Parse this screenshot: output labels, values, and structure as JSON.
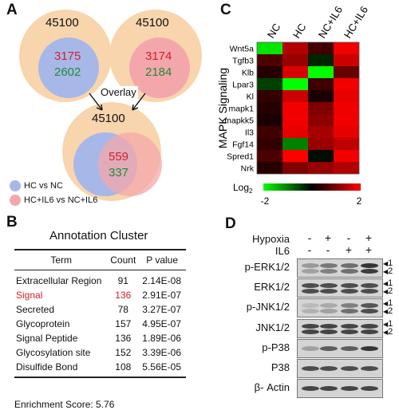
{
  "panels": {
    "a": "A",
    "b": "B",
    "c": "C",
    "d": "D"
  },
  "venn": {
    "left": {
      "total": "45100",
      "overlap_red": "3175",
      "overlap_green": "2602"
    },
    "right": {
      "total": "45100",
      "overlap_red": "3174",
      "overlap_green": "2184"
    },
    "overlay_label": "Overlay",
    "combined": {
      "total": "45100",
      "overlap_red": "559",
      "overlap_green": "337"
    },
    "legend": [
      {
        "label": "HC vs NC",
        "color": "#a7b8e8"
      },
      {
        "label": "HC+IL6 vs NC+IL6",
        "color": "#f4a7ab"
      }
    ]
  },
  "annotation": {
    "title": "Annotation Cluster",
    "headers": [
      "Term",
      "Count",
      "P value"
    ],
    "rows": [
      {
        "term": "Extracellular Region",
        "count": "91",
        "p": "2.14E-08"
      },
      {
        "term": "Signal",
        "count": "136",
        "p": "2.91E-07"
      },
      {
        "term": "Secreted",
        "count": "78",
        "p": "3.27E-07"
      },
      {
        "term": "Glycoprotein",
        "count": "157",
        "p": "4.95E-07"
      },
      {
        "term": "Signal Peptide",
        "count": "136",
        "p": "1.89E-06"
      },
      {
        "term": "Glycosylation site",
        "count": "152",
        "p": "3.39E-06"
      },
      {
        "term": "Disulfide Bond",
        "count": "108",
        "p": "5.56E-05"
      }
    ],
    "enrichment": "Enrichment Score: 5.76"
  },
  "heatmap": {
    "columns": [
      "NC",
      "HC",
      "NC+IL6",
      "HC+IL6"
    ],
    "rows": [
      "Wnt5a",
      "Tgfb3",
      "Klb",
      "Lpar3",
      "Kl",
      "mapk1",
      "mapkk5",
      "Il3",
      "Fgf14",
      "Spred1",
      "Nrk"
    ],
    "ylabel": "MAPK Signaling",
    "colorbar": {
      "label": "Log",
      "label_sub": "2",
      "min": "-2",
      "max": "2"
    },
    "values": [
      [
        -1.8,
        1.4,
        0.5,
        1.9
      ],
      [
        0.6,
        1.2,
        -0.3,
        1.6
      ],
      [
        0.3,
        1.7,
        -2.0,
        0.8
      ],
      [
        -0.5,
        -2.0,
        0.5,
        1.9
      ],
      [
        0.4,
        1.6,
        0.2,
        1.8
      ],
      [
        0.3,
        1.9,
        1.0,
        1.9
      ],
      [
        0.2,
        1.9,
        1.1,
        1.9
      ],
      [
        0.5,
        1.8,
        1.3,
        1.8
      ],
      [
        0.4,
        -1.0,
        1.2,
        1.5
      ],
      [
        0.6,
        2.0,
        -0.1,
        1.9
      ],
      [
        0.3,
        1.0,
        1.2,
        1.4
      ]
    ]
  },
  "western": {
    "conditions": [
      {
        "label": "Hypoxia",
        "signs": [
          "-",
          "+",
          "-",
          "+"
        ]
      },
      {
        "label": "IL6",
        "signs": [
          "-",
          "-",
          "+",
          "+"
        ]
      }
    ],
    "blots": [
      {
        "label": "p-ERK1/2",
        "markers": [
          "1",
          "2"
        ]
      },
      {
        "label": "ERK1/2",
        "markers": [
          "1",
          "2"
        ]
      },
      {
        "label": "p-JNK1/2",
        "markers": [
          "1",
          "2"
        ]
      },
      {
        "label": "JNK1/2",
        "markers": [
          "1",
          "2"
        ]
      },
      {
        "label": "p-P38",
        "markers": []
      },
      {
        "label": "P38",
        "markers": []
      },
      {
        "label": "β- Actin",
        "markers": []
      }
    ]
  }
}
